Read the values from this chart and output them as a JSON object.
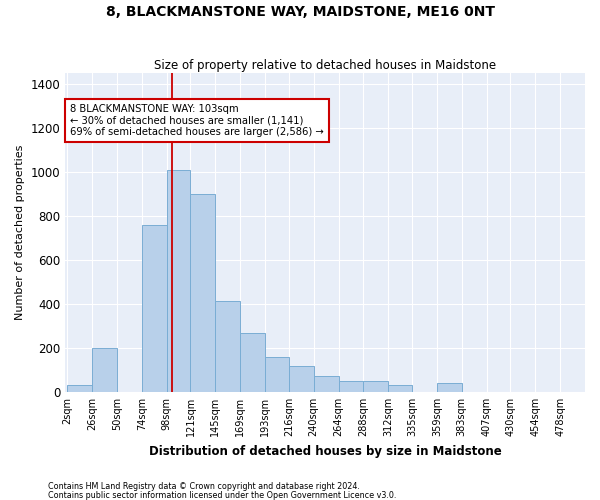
{
  "title": "8, BLACKMANSTONE WAY, MAIDSTONE, ME16 0NT",
  "subtitle": "Size of property relative to detached houses in Maidstone",
  "xlabel": "Distribution of detached houses by size in Maidstone",
  "ylabel": "Number of detached properties",
  "bar_color": "#b8d0ea",
  "bar_edge_color": "#7aadd4",
  "background_color": "#e8eef8",
  "grid_color": "#ffffff",
  "annotation_box_color": "#cc0000",
  "property_line_color": "#cc0000",
  "property_value": 103,
  "annotation_text": "8 BLACKMANSTONE WAY: 103sqm\n← 30% of detached houses are smaller (1,141)\n69% of semi-detached houses are larger (2,586) →",
  "footnote1": "Contains HM Land Registry data © Crown copyright and database right 2024.",
  "footnote2": "Contains public sector information licensed under the Open Government Licence v3.0.",
  "categories": [
    "2sqm",
    "26sqm",
    "50sqm",
    "74sqm",
    "98sqm",
    "121sqm",
    "145sqm",
    "169sqm",
    "193sqm",
    "216sqm",
    "240sqm",
    "264sqm",
    "288sqm",
    "312sqm",
    "335sqm",
    "359sqm",
    "383sqm",
    "407sqm",
    "430sqm",
    "454sqm",
    "478sqm"
  ],
  "bin_edges": [
    2,
    26,
    50,
    74,
    98,
    121,
    145,
    169,
    193,
    216,
    240,
    264,
    288,
    312,
    335,
    359,
    383,
    407,
    430,
    454,
    478,
    502
  ],
  "values": [
    30,
    200,
    0,
    760,
    1010,
    900,
    415,
    270,
    160,
    120,
    75,
    50,
    50,
    30,
    0,
    40,
    0,
    0,
    0,
    0,
    0
  ],
  "ylim": [
    0,
    1450
  ],
  "yticks": [
    0,
    200,
    400,
    600,
    800,
    1000,
    1200,
    1400
  ]
}
